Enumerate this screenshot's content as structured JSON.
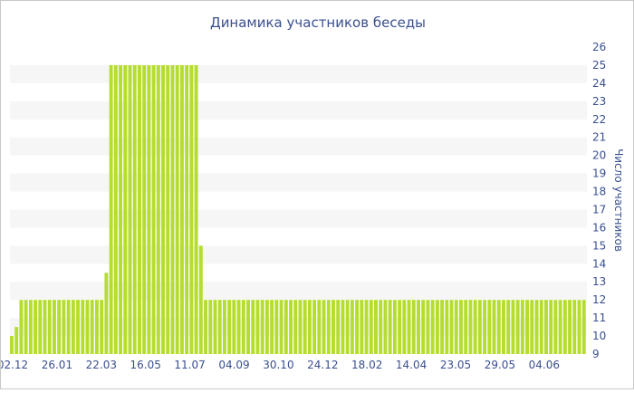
{
  "chart_data": {
    "type": "bar",
    "title": "Динамика участников беседы",
    "ylabel": "Число участников",
    "xlabel": "",
    "ylim": [
      9,
      26
    ],
    "y_ticks": [
      9,
      10,
      11,
      12,
      13,
      14,
      15,
      16,
      17,
      18,
      19,
      20,
      21,
      22,
      23,
      24,
      25,
      26
    ],
    "x_tick_labels": [
      "02.12",
      "26.01",
      "22.03",
      "16.05",
      "11.07",
      "04.09",
      "30.10",
      "24.12",
      "18.02",
      "14.04",
      "23.05",
      "29.05",
      "04.06"
    ],
    "bar_color": "#b5dd2f",
    "grid": "alternating horizontal bands",
    "values": [
      10,
      10.5,
      12,
      12,
      12,
      12,
      12,
      12,
      12,
      12,
      12,
      12,
      12,
      12,
      12,
      12,
      12,
      12,
      12,
      12,
      13.5,
      25,
      25,
      25,
      25,
      25,
      25,
      25,
      25,
      25,
      25,
      25,
      25,
      25,
      25,
      25,
      25,
      25,
      25,
      25,
      15,
      12,
      12,
      12,
      12,
      12,
      12,
      12,
      12,
      12,
      12,
      12,
      12,
      12,
      12,
      12,
      12,
      12,
      12,
      12,
      12,
      12,
      12,
      12,
      12,
      12,
      12,
      12,
      12,
      12,
      12,
      12,
      12,
      12,
      12,
      12,
      12,
      12,
      12,
      12,
      12,
      12,
      12,
      12,
      12,
      12,
      12,
      12,
      12,
      12,
      12,
      12,
      12,
      12,
      12,
      12,
      12,
      12,
      12,
      12,
      12,
      12,
      12,
      12,
      12,
      12,
      12,
      12,
      12,
      12,
      12,
      12,
      12,
      12,
      12,
      12,
      12,
      12,
      12,
      12,
      12,
      12
    ]
  }
}
